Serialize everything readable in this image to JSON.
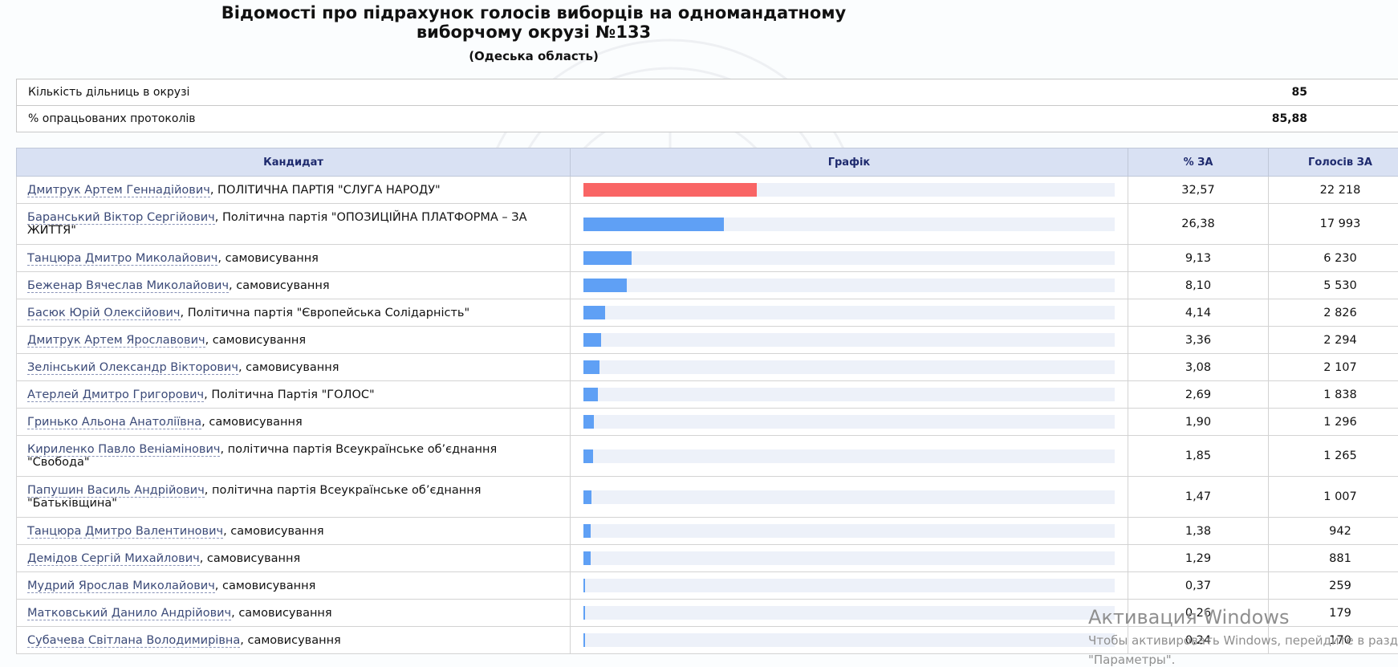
{
  "header": {
    "title_line1": "Відомості про підрахунок голосів виборців на одномандатному",
    "title_line2": "виборчому окрузі №133",
    "region": "(Одеська область)"
  },
  "summary": [
    {
      "label": "Кількість дільниць в окрузі",
      "value": "85"
    },
    {
      "label": "% опрацьованих протоколів",
      "value": "85,88"
    }
  ],
  "table": {
    "headers": {
      "candidate": "Кандидат",
      "graph": "Графік",
      "percent": "% ЗА",
      "votes": "Голосів ЗА"
    },
    "rows": [
      {
        "name": "Дмитрук Артем Геннадійович",
        "affiliation": ", ПОЛІТИЧНА ПАРТІЯ \"СЛУГА НАРОДУ\"",
        "percent": "32,57",
        "votes": "22 218",
        "share": 32.57,
        "top": true
      },
      {
        "name": "Баранський Віктор Сергійович",
        "affiliation": ", Політична партія \"ОПОЗИЦІЙНА ПЛАТФОРМА – ЗА ЖИТТЯ\"",
        "percent": "26,38",
        "votes": "17 993",
        "share": 26.38
      },
      {
        "name": "Танцюра Дмитро Миколайович",
        "affiliation": ", самовисування",
        "percent": "9,13",
        "votes": "6 230",
        "share": 9.13
      },
      {
        "name": "Беженар Вячеслав Миколайович",
        "affiliation": ", самовисування",
        "percent": "8,10",
        "votes": "5 530",
        "share": 8.1
      },
      {
        "name": "Басюк Юрій Олексійович",
        "affiliation": ", Політична партія \"Європейська Солідарність\"",
        "percent": "4,14",
        "votes": "2 826",
        "share": 4.14
      },
      {
        "name": "Дмитрук Артем Ярославович",
        "affiliation": ", самовисування",
        "percent": "3,36",
        "votes": "2 294",
        "share": 3.36
      },
      {
        "name": "Зелінський Олександр Вікторович",
        "affiliation": ", самовисування",
        "percent": "3,08",
        "votes": "2 107",
        "share": 3.08
      },
      {
        "name": "Атерлей Дмитро Григорович",
        "affiliation": ", Політична Партія \"ГОЛОС\"",
        "percent": "2,69",
        "votes": "1 838",
        "share": 2.69
      },
      {
        "name": "Гринько Альона Анатоліївна",
        "affiliation": ", самовисування",
        "percent": "1,90",
        "votes": "1 296",
        "share": 1.9
      },
      {
        "name": "Кириленко Павло Веніамінович",
        "affiliation": ", політична партія Всеукраїнське об’єднання \"Свобода\"",
        "percent": "1,85",
        "votes": "1 265",
        "share": 1.85
      },
      {
        "name": "Папушин Василь Андрійович",
        "affiliation": ", політична партія Всеукраїнське об’єднання \"Батьківщина\"",
        "percent": "1,47",
        "votes": "1 007",
        "share": 1.47
      },
      {
        "name": "Танцюра Дмитро Валентинович",
        "affiliation": ", самовисування",
        "percent": "1,38",
        "votes": "942",
        "share": 1.38
      },
      {
        "name": "Демідов Сергій Михайлович",
        "affiliation": ", самовисування",
        "percent": "1,29",
        "votes": "881",
        "share": 1.29
      },
      {
        "name": "Мудрий Ярослав Миколайович",
        "affiliation": ", самовисування",
        "percent": "0,37",
        "votes": "259",
        "share": 0.37
      },
      {
        "name": "Матковський Данило Андрійович",
        "affiliation": ", самовисування",
        "percent": "0,26",
        "votes": "179",
        "share": 0.26
      },
      {
        "name": "Субачева Світлана Володимирівна",
        "affiliation": ", самовисування",
        "percent": "0,24",
        "votes": "170",
        "share": 0.24
      }
    ]
  },
  "overlay": {
    "line1": "Активация Windows",
    "line2": "Чтобы активировать Windows, перейдите в раздел",
    "line3": "\"Параметры\"."
  },
  "colors": {
    "top_bar": "#f96565",
    "bar": "#5fa0f5",
    "track": "#edf1f9",
    "header_bg": "#d9e1f3"
  },
  "icons": {
    "watermark": "coat-of-arms-seal"
  }
}
